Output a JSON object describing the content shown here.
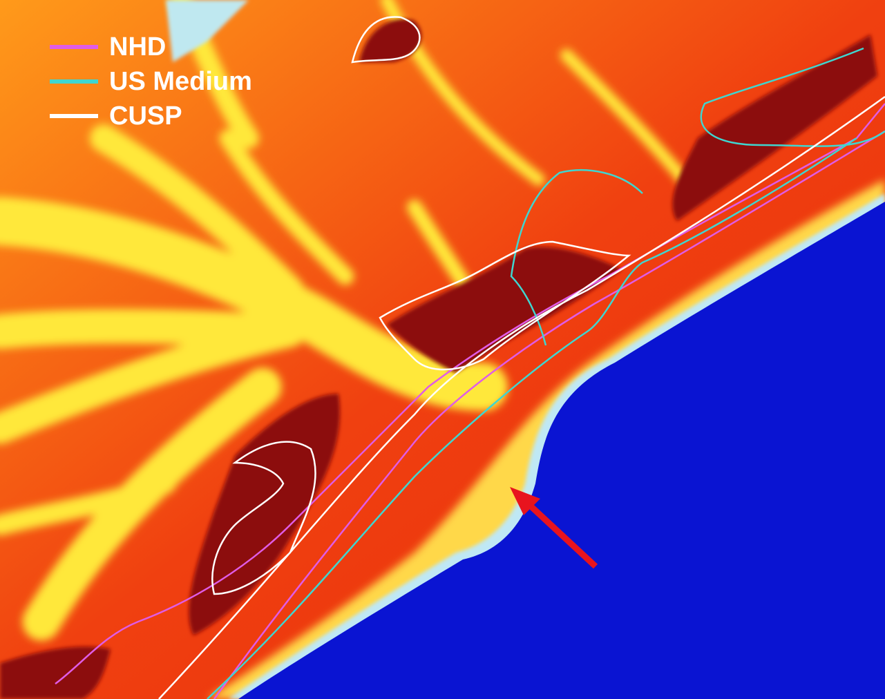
{
  "legend": {
    "items": [
      {
        "label": "NHD",
        "color": "#e05ce6"
      },
      {
        "label": "US Medium",
        "color": "#3fd6d0"
      },
      {
        "label": "CUSP",
        "color": "#ffffff"
      }
    ]
  }
}
